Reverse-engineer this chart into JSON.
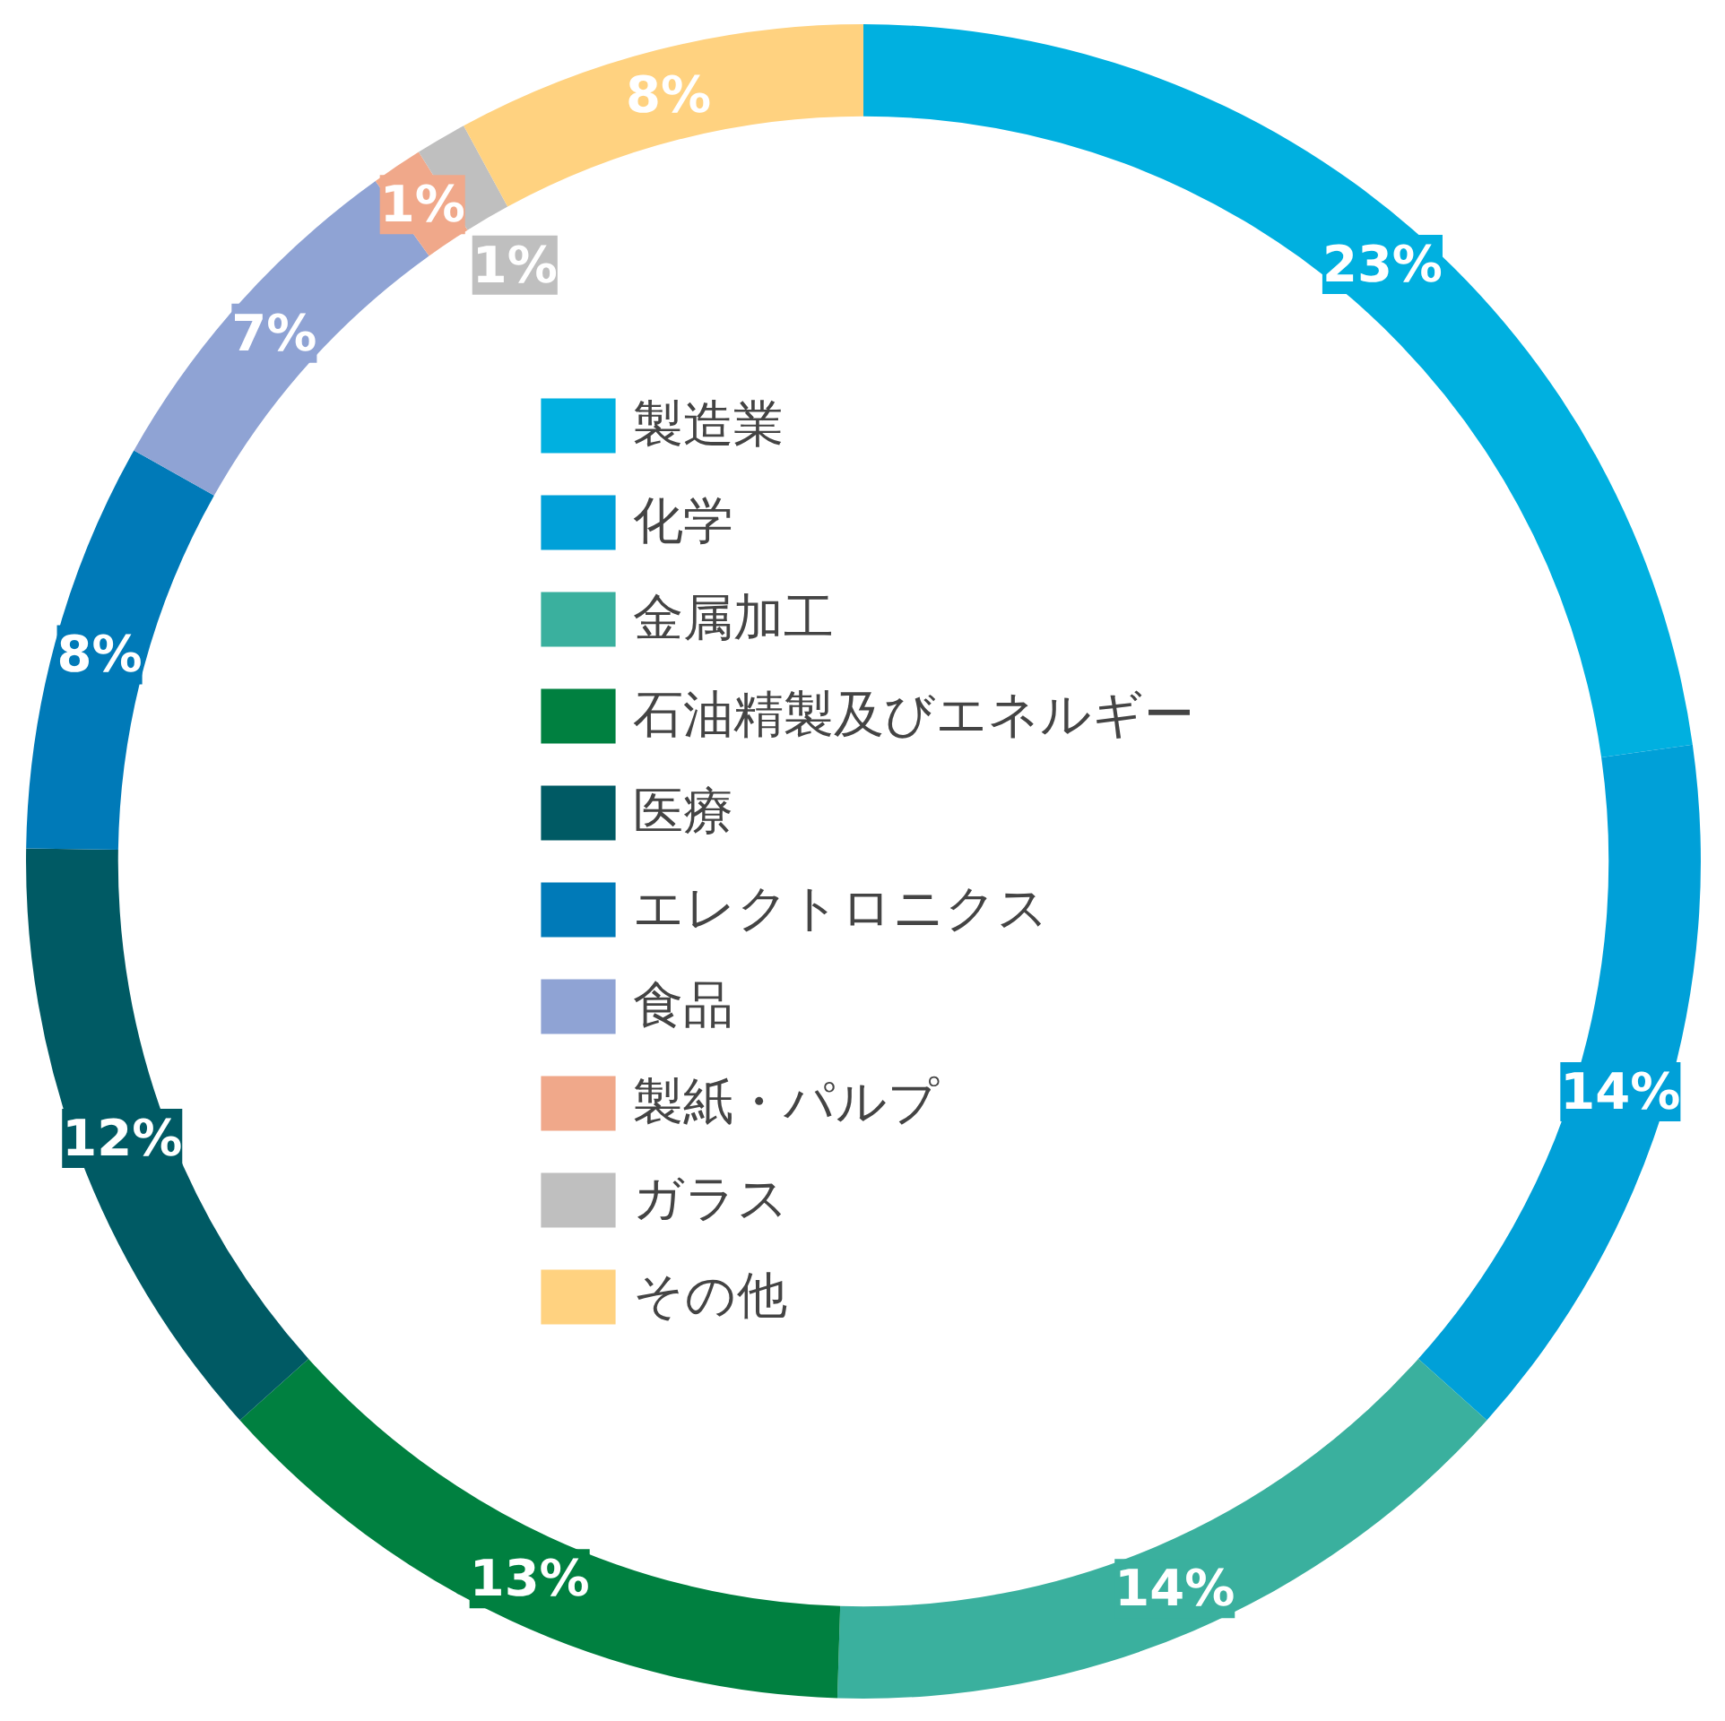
{
  "chart_data": {
    "type": "donut",
    "categories": [
      "製造業",
      "化学",
      "金属加工",
      "石油精製及びエネルギー",
      "医療",
      "エレクトロニクス",
      "食品",
      "製紙・パルプ",
      "ガラス",
      "その他"
    ],
    "values": [
      23,
      14,
      14,
      13,
      12,
      8,
      7,
      1,
      1,
      8
    ],
    "colors": [
      "#00b0e0",
      "#00a0d8",
      "#3ab09e",
      "#008040",
      "#005a64",
      "#007ab8",
      "#8fa3d4",
      "#f0a88a",
      "#bfbfbf",
      "#ffd280"
    ],
    "value_labels": [
      "23%",
      "14%",
      "14%",
      "13%",
      "12%",
      "8%",
      "7%",
      "1%",
      "1%",
      "8%"
    ],
    "legend": "center"
  }
}
